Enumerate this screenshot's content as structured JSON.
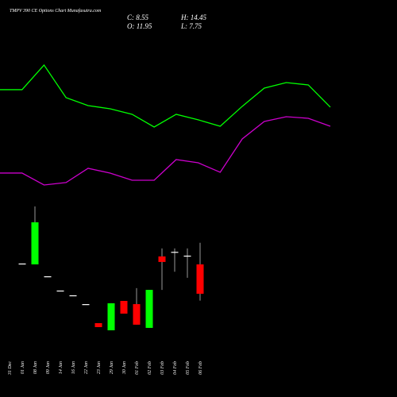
{
  "chart_data": {
    "type": "candlestick",
    "title": "TMPV 390 CE Options Chart Munafasutra.com",
    "ohlc_labels": {
      "close": "C: 8.55",
      "high": "H: 14.45",
      "open": "O: 11.95",
      "low": "L: 7.75"
    },
    "categories": [
      "31 Dec",
      "01 Jan",
      "08 Jan",
      "09 Jan",
      "14 Jan",
      "16 Jan",
      "22 Jan",
      "23 Jan",
      "29 Jan",
      "30 Jan",
      "01 Feb",
      "02 Feb",
      "03 Feb",
      "04 Feb",
      "05 Feb",
      "06 Feb"
    ],
    "open": [
      null,
      12.05,
      11.95,
      10.57,
      8.92,
      8.37,
      7.35,
      5.15,
      4.32,
      7.72,
      7.35,
      4.6,
      12.87,
      13.4,
      12.96,
      11.95
    ],
    "high": [
      null,
      12.05,
      18.66,
      10.57,
      8.92,
      8.37,
      7.35,
      5.15,
      7.45,
      7.72,
      9.2,
      9.0,
      13.8,
      13.8,
      13.8,
      14.45
    ],
    "low": [
      null,
      12.05,
      11.95,
      10.57,
      8.92,
      8.37,
      7.35,
      4.69,
      4.32,
      6.25,
      4.97,
      4.6,
      9.0,
      11.1,
      10.4,
      7.75
    ],
    "close": [
      null,
      12.05,
      16.82,
      10.57,
      8.92,
      8.37,
      7.35,
      4.69,
      7.45,
      6.25,
      4.97,
      9.0,
      12.23,
      13.4,
      12.96,
      8.55
    ],
    "up_color": "#00ff00",
    "down_color": "#ff0000",
    "doji_color": "#ffffff",
    "lines": [
      {
        "color": "#00ff00",
        "values": [
          32.17,
          32.17,
          35.02,
          31.25,
          30.33,
          29.96,
          29.32,
          27.85,
          29.32,
          28.68,
          27.94,
          30.24,
          32.35,
          32.99,
          32.72,
          30.15
        ]
      },
      {
        "color": "#cc00cc",
        "values": [
          22.52,
          22.52,
          21.14,
          21.42,
          23.07,
          22.52,
          21.69,
          21.69,
          24.08,
          23.71,
          22.61,
          26.47,
          28.49,
          29.04,
          28.86,
          27.94
        ]
      }
    ],
    "ylim": [
      -3.4,
      42.55
    ]
  }
}
